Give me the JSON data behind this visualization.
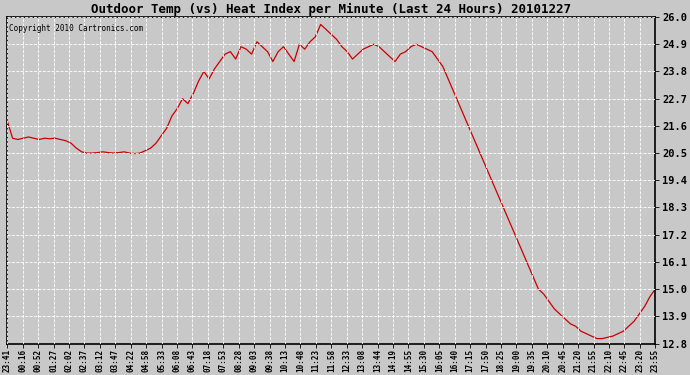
{
  "title": "Outdoor Temp (vs) Heat Index per Minute (Last 24 Hours) 20101227",
  "copyright": "Copyright 2010 Cartronics.com",
  "line_color": "#cc0000",
  "bg_color": "#c8c8c8",
  "plot_bg_color": "#c8c8c8",
  "grid_color": "#ffffff",
  "ylim": [
    12.8,
    26.0
  ],
  "yticks": [
    12.8,
    13.9,
    15.0,
    16.1,
    17.2,
    18.3,
    19.4,
    20.5,
    21.6,
    22.7,
    23.8,
    24.9,
    26.0
  ],
  "xtick_labels": [
    "23:41",
    "00:16",
    "00:52",
    "01:27",
    "02:02",
    "02:37",
    "03:12",
    "03:47",
    "04:22",
    "04:58",
    "05:33",
    "06:08",
    "06:43",
    "07:18",
    "07:53",
    "08:28",
    "09:03",
    "09:38",
    "10:13",
    "10:48",
    "11:23",
    "11:58",
    "12:33",
    "13:08",
    "13:44",
    "14:19",
    "14:55",
    "15:30",
    "16:05",
    "16:40",
    "17:15",
    "17:50",
    "18:25",
    "19:00",
    "19:35",
    "20:10",
    "20:45",
    "21:20",
    "21:55",
    "22:10",
    "22:45",
    "23:20",
    "23:55"
  ],
  "data_y": [
    21.8,
    21.1,
    21.05,
    21.1,
    21.15,
    21.1,
    21.05,
    21.1,
    21.08,
    21.1,
    21.05,
    21.0,
    20.9,
    20.7,
    20.55,
    20.5,
    20.5,
    20.52,
    20.55,
    20.52,
    20.5,
    20.52,
    20.55,
    20.5,
    20.48,
    20.5,
    20.6,
    20.7,
    20.9,
    21.2,
    21.5,
    22.0,
    22.3,
    22.7,
    22.5,
    22.9,
    23.4,
    23.8,
    23.5,
    23.9,
    24.2,
    24.5,
    24.6,
    24.3,
    24.8,
    24.7,
    24.5,
    25.0,
    24.8,
    24.6,
    24.2,
    24.6,
    24.8,
    24.5,
    24.2,
    24.9,
    24.7,
    25.0,
    25.2,
    25.7,
    25.5,
    25.3,
    25.1,
    24.8,
    24.6,
    24.3,
    24.5,
    24.7,
    24.8,
    24.9,
    24.8,
    24.6,
    24.4,
    24.2,
    24.5,
    24.6,
    24.8,
    24.9,
    24.8,
    24.7,
    24.6,
    24.3,
    24.0,
    23.5,
    23.0,
    22.5,
    22.0,
    21.5,
    21.0,
    20.5,
    20.0,
    19.5,
    19.0,
    18.5,
    18.0,
    17.5,
    17.0,
    16.5,
    16.0,
    15.5,
    15.0,
    14.8,
    14.5,
    14.2,
    14.0,
    13.8,
    13.6,
    13.5,
    13.3,
    13.2,
    13.1,
    13.0,
    13.0,
    13.05,
    13.1,
    13.2,
    13.3,
    13.5,
    13.7,
    14.0,
    14.3,
    14.7,
    15.0
  ]
}
